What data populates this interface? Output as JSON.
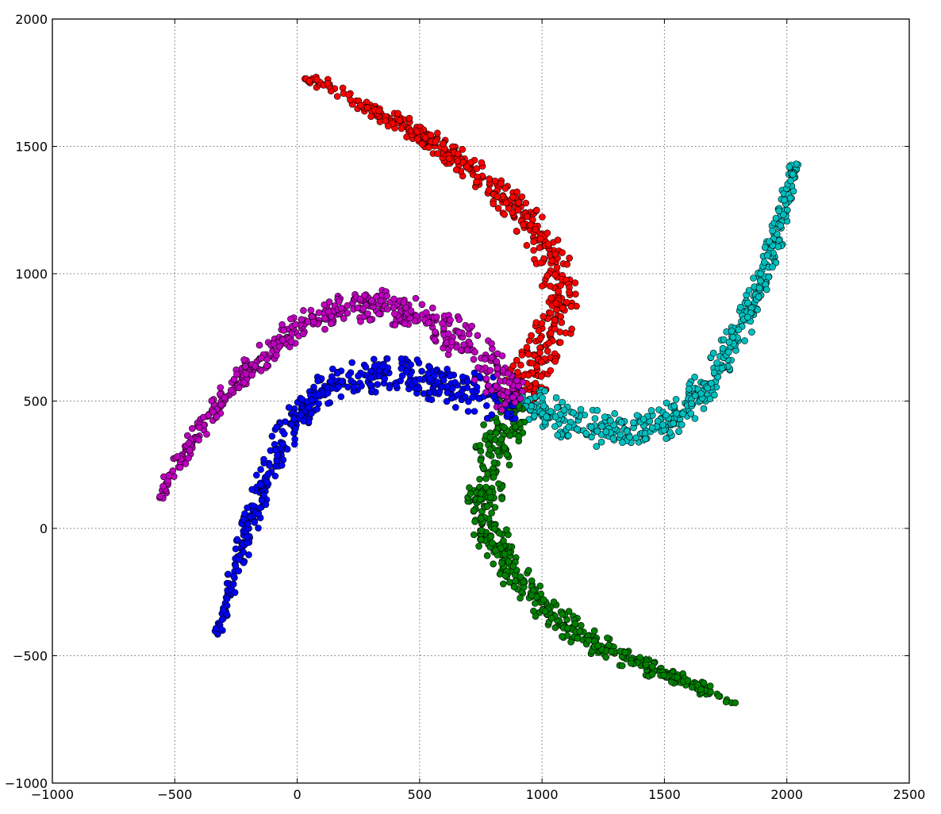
{
  "chart_data": {
    "type": "scatter",
    "title": "",
    "xlabel": "",
    "ylabel": "",
    "xlim": [
      -1000,
      2500
    ],
    "ylim": [
      -1000,
      2000
    ],
    "grid": true,
    "legend": "none",
    "xticks": [
      -1000,
      -500,
      0,
      500,
      1000,
      1500,
      2000,
      2500
    ],
    "yticks": [
      -1000,
      -500,
      0,
      500,
      1000,
      1500,
      2000
    ],
    "xtick_labels": [
      "−1000",
      "−500",
      "0",
      "500",
      "1000",
      "1500",
      "2000",
      "2500"
    ],
    "ytick_labels": [
      "−1000",
      "−500",
      "0",
      "500",
      "1000",
      "1500",
      "2000"
    ],
    "series": [
      {
        "color": "#ff0000",
        "point_count": 500,
        "spine": [
          [
            15,
            1770
          ],
          [
            100,
            1750
          ],
          [
            200,
            1695
          ],
          [
            300,
            1645
          ],
          [
            420,
            1590
          ],
          [
            520,
            1535
          ],
          [
            620,
            1480
          ],
          [
            720,
            1410
          ],
          [
            820,
            1330
          ],
          [
            920,
            1230
          ],
          [
            1000,
            1130
          ],
          [
            1060,
            1020
          ],
          [
            1075,
            900
          ],
          [
            1045,
            780
          ],
          [
            990,
            660
          ],
          [
            930,
            560
          ],
          [
            900,
            500
          ]
        ],
        "start_width": 20,
        "end_width": 85
      },
      {
        "color": "#00bfbf",
        "point_count": 500,
        "spine": [
          [
            2030,
            1440
          ],
          [
            2000,
            1300
          ],
          [
            1960,
            1150
          ],
          [
            1910,
            1000
          ],
          [
            1860,
            870
          ],
          [
            1800,
            760
          ],
          [
            1730,
            640
          ],
          [
            1650,
            540
          ],
          [
            1560,
            450
          ],
          [
            1460,
            400
          ],
          [
            1350,
            385
          ],
          [
            1250,
            390
          ],
          [
            1150,
            410
          ],
          [
            1050,
            440
          ],
          [
            960,
            470
          ],
          [
            900,
            500
          ]
        ],
        "start_width": 20,
        "end_width": 85
      },
      {
        "color": "#008000",
        "point_count": 500,
        "spine": [
          [
            1790,
            -670
          ],
          [
            1700,
            -650
          ],
          [
            1600,
            -610
          ],
          [
            1500,
            -570
          ],
          [
            1400,
            -530
          ],
          [
            1300,
            -490
          ],
          [
            1200,
            -445
          ],
          [
            1100,
            -380
          ],
          [
            1000,
            -300
          ],
          [
            900,
            -200
          ],
          [
            820,
            -90
          ],
          [
            770,
            30
          ],
          [
            765,
            150
          ],
          [
            790,
            260
          ],
          [
            830,
            370
          ],
          [
            870,
            460
          ],
          [
            900,
            500
          ]
        ],
        "start_width": 20,
        "end_width": 85
      },
      {
        "color": "#0000ff",
        "point_count": 500,
        "spine": [
          [
            -330,
            -430
          ],
          [
            -290,
            -300
          ],
          [
            -250,
            -170
          ],
          [
            -210,
            -40
          ],
          [
            -160,
            100
          ],
          [
            -110,
            240
          ],
          [
            -50,
            360
          ],
          [
            20,
            460
          ],
          [
            100,
            540
          ],
          [
            200,
            585
          ],
          [
            300,
            600
          ],
          [
            400,
            600
          ],
          [
            500,
            590
          ],
          [
            600,
            570
          ],
          [
            700,
            540
          ],
          [
            800,
            510
          ],
          [
            900,
            500
          ]
        ],
        "start_width": 20,
        "end_width": 85
      },
      {
        "color": "#bf00bf",
        "point_count": 500,
        "spine": [
          [
            -570,
            100
          ],
          [
            -510,
            220
          ],
          [
            -430,
            340
          ],
          [
            -350,
            450
          ],
          [
            -260,
            560
          ],
          [
            -160,
            660
          ],
          [
            -60,
            750
          ],
          [
            50,
            810
          ],
          [
            170,
            855
          ],
          [
            300,
            880
          ],
          [
            420,
            860
          ],
          [
            540,
            820
          ],
          [
            650,
            750
          ],
          [
            740,
            680
          ],
          [
            820,
            600
          ],
          [
            880,
            530
          ],
          [
            900,
            500
          ]
        ],
        "start_width": 20,
        "end_width": 85
      }
    ]
  }
}
